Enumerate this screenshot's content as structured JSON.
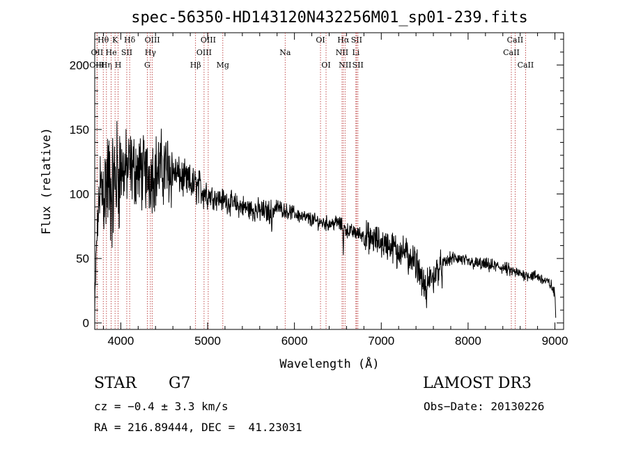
{
  "chart_data": {
    "type": "line",
    "title": "spec-56350-HD143120N432256M01_sp01-239.fits",
    "xlabel": "Wavelength (Å)",
    "ylabel": "Flux (relative)",
    "xlim": [
      3700,
      9100
    ],
    "ylim": [
      -5,
      225
    ],
    "xticks": [
      4000,
      5000,
      6000,
      7000,
      8000,
      9000
    ],
    "yticks": [
      0,
      50,
      100,
      150,
      200
    ],
    "spectrum_anchors": {
      "wavelength": [
        3700,
        3720,
        3750,
        3800,
        3850,
        3900,
        3950,
        4000,
        4100,
        4200,
        4300,
        4400,
        4500,
        4600,
        4700,
        4800,
        4900,
        5000,
        5100,
        5200,
        5300,
        5400,
        5500,
        5600,
        5700,
        5800,
        5900,
        6000,
        6100,
        6200,
        6300,
        6400,
        6500,
        6600,
        6700,
        6800,
        6900,
        7000,
        7100,
        7200,
        7300,
        7400,
        7500,
        7600,
        7700,
        7800,
        7900,
        8000,
        8100,
        8200,
        8300,
        8400,
        8500,
        8600,
        8700,
        8800,
        8900,
        8950,
        9000,
        9010
      ],
      "flux": [
        5,
        60,
        95,
        105,
        110,
        100,
        115,
        118,
        120,
        118,
        115,
        118,
        120,
        118,
        112,
        108,
        105,
        100,
        97,
        95,
        92,
        90,
        88,
        87,
        86,
        90,
        87,
        85,
        82,
        80,
        78,
        77,
        78,
        72,
        70,
        68,
        65,
        62,
        60,
        57,
        54,
        48,
        28,
        38,
        45,
        50,
        50,
        47,
        46,
        45,
        44,
        43,
        40,
        38,
        37,
        36,
        32,
        30,
        22,
        5
      ]
    },
    "line_markers": [
      {
        "label": "Hθ",
        "wavelength": 3798,
        "row": 1
      },
      {
        "label": "OII",
        "wavelength": 3727,
        "row": 2
      },
      {
        "label": "Hη",
        "wavelength": 3835,
        "row": 3
      },
      {
        "label": "OIII",
        "wavelength": 3726,
        "row": 3
      },
      {
        "label": "K",
        "wavelength": 3934,
        "row": 1
      },
      {
        "label": "He",
        "wavelength": 3889,
        "row": 2
      },
      {
        "label": "H",
        "wavelength": 3969,
        "row": 3
      },
      {
        "label": "SII",
        "wavelength": 4069,
        "row": 2
      },
      {
        "label": "Hδ",
        "wavelength": 4102,
        "row": 1
      },
      {
        "label": "OIII",
        "wavelength": 4363,
        "row": 1
      },
      {
        "label": "Hγ",
        "wavelength": 4341,
        "row": 2
      },
      {
        "label": "G",
        "wavelength": 4305,
        "row": 3
      },
      {
        "label": "Hβ",
        "wavelength": 4861,
        "row": 3
      },
      {
        "label": "OIII",
        "wavelength": 5007,
        "row": 1
      },
      {
        "label": "OIII",
        "wavelength": 4959,
        "row": 2
      },
      {
        "label": "Mg",
        "wavelength": 5175,
        "row": 3
      },
      {
        "label": "Na",
        "wavelength": 5893,
        "row": 2
      },
      {
        "label": "OI",
        "wavelength": 6300,
        "row": 1
      },
      {
        "label": "OI",
        "wavelength": 6364,
        "row": 3
      },
      {
        "label": "Hα",
        "wavelength": 6563,
        "row": 1
      },
      {
        "label": "NII",
        "wavelength": 6548,
        "row": 2
      },
      {
        "label": "NII",
        "wavelength": 6583,
        "row": 3
      },
      {
        "label": "SII",
        "wavelength": 6716,
        "row": 1
      },
      {
        "label": "Li",
        "wavelength": 6708,
        "row": 2
      },
      {
        "label": "SII",
        "wavelength": 6731,
        "row": 3
      },
      {
        "label": "CaII",
        "wavelength": 8542,
        "row": 1
      },
      {
        "label": "CaII",
        "wavelength": 8498,
        "row": 2
      },
      {
        "label": "CaII",
        "wavelength": 8662,
        "row": 3
      }
    ]
  },
  "info": {
    "object_class": "STAR",
    "subclass": "G7",
    "survey": "LAMOST DR3",
    "redshift": "cz = −0.4 ± 3.3 km/s",
    "obs_date": "Obs−Date: 20130226",
    "coords": "RA = 216.89444, DEC =  41.23031"
  }
}
